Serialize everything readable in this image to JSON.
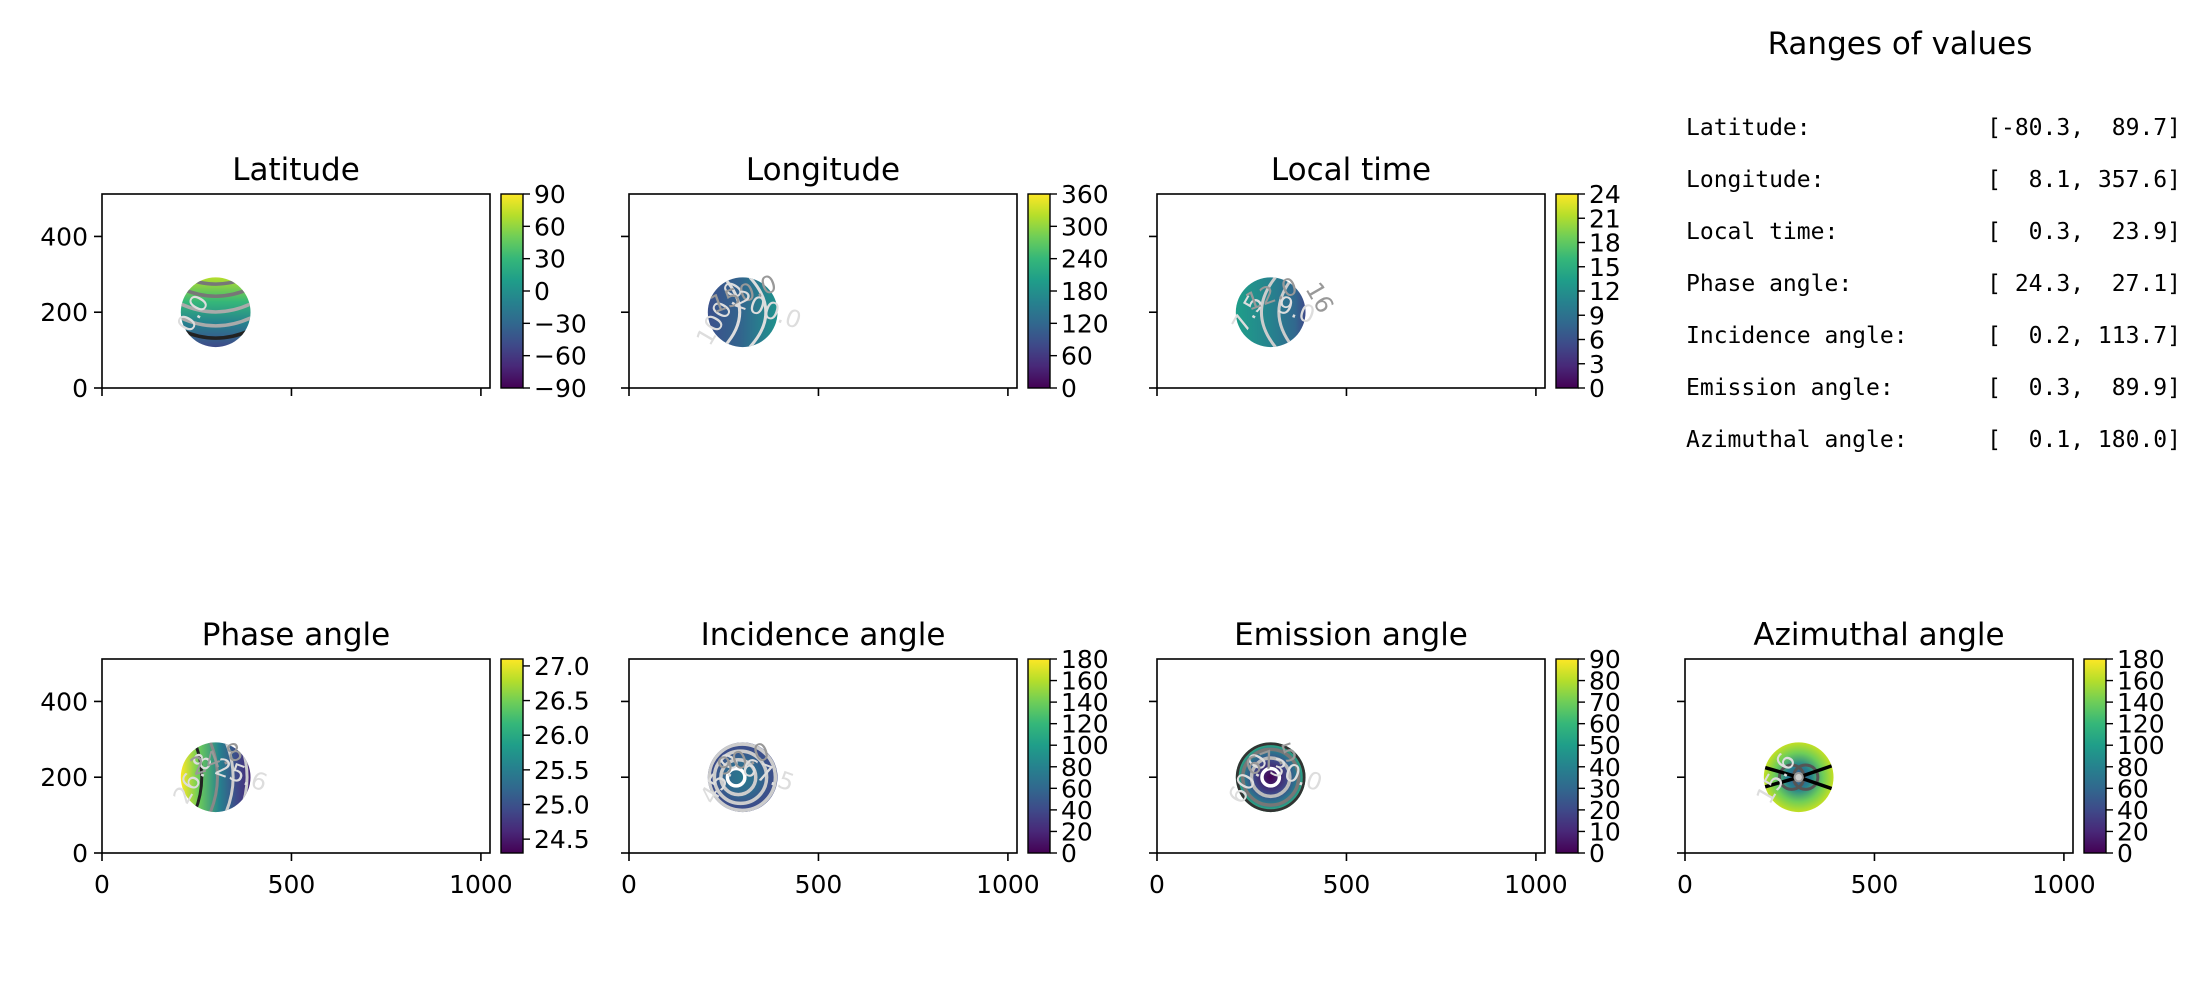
{
  "chart_data": [
    {
      "type": "heatmap",
      "key": "lat",
      "title": "Latitude",
      "xlim": [
        0,
        1024
      ],
      "ylim": [
        0,
        512
      ],
      "xticks": [
        "0",
        "500",
        "1000"
      ],
      "yticks": [
        "0",
        "200",
        "400"
      ],
      "colorbar": {
        "min": -90,
        "max": 90,
        "ticks": [
          "90",
          "60",
          "30",
          "0",
          "−30",
          "−60",
          "−90"
        ]
      },
      "contour_labels": [
        "0.0"
      ]
    },
    {
      "type": "heatmap",
      "key": "lon",
      "title": "Longitude",
      "xlim": [
        0,
        1024
      ],
      "ylim": [
        0,
        512
      ],
      "xticks": [
        "0",
        "500",
        "1000"
      ],
      "yticks": [
        "0",
        "200",
        "400"
      ],
      "colorbar": {
        "min": 0,
        "max": 360,
        "ticks": [
          "360",
          "300",
          "240",
          "180",
          "120",
          "60",
          "0"
        ]
      },
      "contour_labels": [
        "100.0",
        "150.0",
        "200.0"
      ]
    },
    {
      "type": "heatmap",
      "key": "lt",
      "title": "Local time",
      "xlim": [
        0,
        1024
      ],
      "ylim": [
        0,
        512
      ],
      "xticks": [
        "0",
        "500",
        "1000"
      ],
      "yticks": [
        "0",
        "200",
        "400"
      ],
      "colorbar": {
        "min": 0,
        "max": 24,
        "ticks": [
          "24",
          "21",
          "18",
          "15",
          "12",
          "9",
          "6",
          "3",
          "0"
        ]
      },
      "contour_labels": [
        "7.5",
        "12.0",
        "9.0",
        "16"
      ]
    },
    {
      "type": "heatmap",
      "key": "phase",
      "title": "Phase angle",
      "xlim": [
        0,
        1024
      ],
      "ylim": [
        0,
        512
      ],
      "xticks": [
        "0",
        "500",
        "1000"
      ],
      "yticks": [
        "0",
        "200",
        "400"
      ],
      "colorbar": {
        "min": 24.3,
        "max": 27.1,
        "ticks": [
          "27.0",
          "26.5",
          "26.0",
          "25.5",
          "25.0",
          "24.5"
        ]
      },
      "contour_labels": [
        "26.8",
        "24.8",
        "25.6"
      ]
    },
    {
      "type": "heatmap",
      "key": "inc",
      "title": "Incidence angle",
      "xlim": [
        0,
        1024
      ],
      "ylim": [
        0,
        512
      ],
      "xticks": [
        "0",
        "500",
        "1000"
      ],
      "yticks": [
        "0",
        "200",
        "400"
      ],
      "colorbar": {
        "min": 0,
        "max": 180,
        "ticks": [
          "180",
          "160",
          "140",
          "120",
          "100",
          "80",
          "60",
          "40",
          "20",
          "0"
        ]
      },
      "contour_labels": [
        "45.0",
        "90.0",
        "67.5"
      ]
    },
    {
      "type": "heatmap",
      "key": "emi",
      "title": "Emission angle",
      "xlim": [
        0,
        1024
      ],
      "ylim": [
        0,
        512
      ],
      "xticks": [
        "0",
        "500",
        "1000"
      ],
      "yticks": [
        "0",
        "200",
        "400"
      ],
      "colorbar": {
        "min": 0,
        "max": 90,
        "ticks": [
          "90",
          "80",
          "70",
          "60",
          "50",
          "40",
          "30",
          "20",
          "10",
          "0"
        ]
      },
      "contour_labels": [
        "60.0",
        "67.5",
        "30.0"
      ]
    },
    {
      "type": "heatmap",
      "key": "azi",
      "title": "Azimuthal angle",
      "xlim": [
        0,
        1024
      ],
      "ylim": [
        0,
        512
      ],
      "xticks": [
        "0",
        "500",
        "1000"
      ],
      "yticks": [
        "0",
        "200",
        "400"
      ],
      "colorbar": {
        "min": 0,
        "max": 180,
        "ticks": [
          "180",
          "160",
          "140",
          "120",
          "100",
          "80",
          "60",
          "40",
          "20",
          "0"
        ]
      },
      "contour_labels": [
        "15.6"
      ]
    }
  ],
  "ranges": {
    "title": "Ranges of values",
    "rows": [
      {
        "name": "Latitude:",
        "value": "[-80.3,  89.7]"
      },
      {
        "name": "Longitude:",
        "value": "[  8.1, 357.6]"
      },
      {
        "name": "Local time:",
        "value": "[  0.3,  23.9]"
      },
      {
        "name": "Phase angle:",
        "value": "[ 24.3,  27.1]"
      },
      {
        "name": "Incidence angle:",
        "value": "[  0.2, 113.7]"
      },
      {
        "name": "Emission angle:",
        "value": "[  0.3,  89.9]"
      },
      {
        "name": "Azimuthal angle:",
        "value": "[  0.1, 180.0]"
      }
    ]
  }
}
